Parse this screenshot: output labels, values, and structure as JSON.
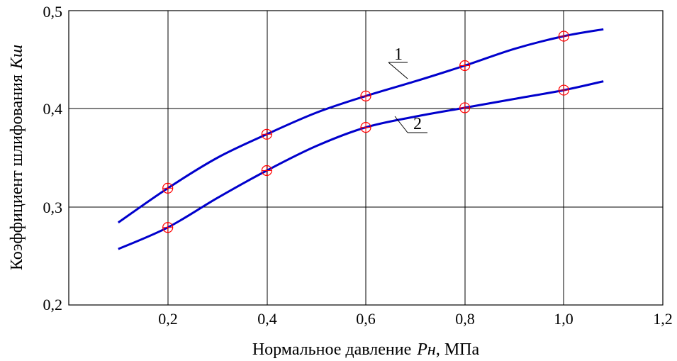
{
  "chart_data": {
    "type": "line",
    "title": "",
    "xlabel": {
      "text": "Нормальное давление",
      "var": "Рн",
      "unit": ", МПа"
    },
    "ylabel": {
      "text": "Коэффициент шлифования",
      "var": "Kш"
    },
    "xlim": [
      0,
      1.2
    ],
    "ylim": [
      0.2,
      0.5
    ],
    "x_ticks": [
      0.2,
      0.4,
      0.6,
      0.8,
      1.0,
      1.2
    ],
    "x_tick_labels": [
      "0,2",
      "0,4",
      "0,6",
      "0,8",
      "1,0",
      "1,2"
    ],
    "y_ticks": [
      0.2,
      0.3,
      0.4,
      0.5
    ],
    "y_tick_labels": [
      "0,2",
      "0,3",
      "0,4",
      "0,5"
    ],
    "grid": true,
    "line_color": "#0000cc",
    "marker_color": "#ff0000",
    "series": [
      {
        "name": "1",
        "curve": [
          [
            0.1,
            0.284
          ],
          [
            0.2,
            0.319
          ],
          [
            0.3,
            0.35
          ],
          [
            0.4,
            0.374
          ],
          [
            0.5,
            0.396
          ],
          [
            0.6,
            0.413
          ],
          [
            0.7,
            0.428
          ],
          [
            0.8,
            0.444
          ],
          [
            0.9,
            0.461
          ],
          [
            1.0,
            0.474
          ],
          [
            1.08,
            0.481
          ]
        ],
        "markers": [
          [
            0.2,
            0.319
          ],
          [
            0.4,
            0.374
          ],
          [
            0.6,
            0.413
          ],
          [
            0.8,
            0.444
          ],
          [
            1.0,
            0.474
          ]
        ]
      },
      {
        "name": "2",
        "curve": [
          [
            0.1,
            0.257
          ],
          [
            0.2,
            0.279
          ],
          [
            0.3,
            0.309
          ],
          [
            0.4,
            0.337
          ],
          [
            0.5,
            0.362
          ],
          [
            0.6,
            0.381
          ],
          [
            0.7,
            0.392
          ],
          [
            0.8,
            0.401
          ],
          [
            0.9,
            0.41
          ],
          [
            1.0,
            0.419
          ],
          [
            1.08,
            0.428
          ]
        ],
        "markers": [
          [
            0.2,
            0.279
          ],
          [
            0.4,
            0.337
          ],
          [
            0.6,
            0.381
          ],
          [
            0.8,
            0.401
          ],
          [
            1.0,
            0.419
          ]
        ]
      }
    ]
  }
}
